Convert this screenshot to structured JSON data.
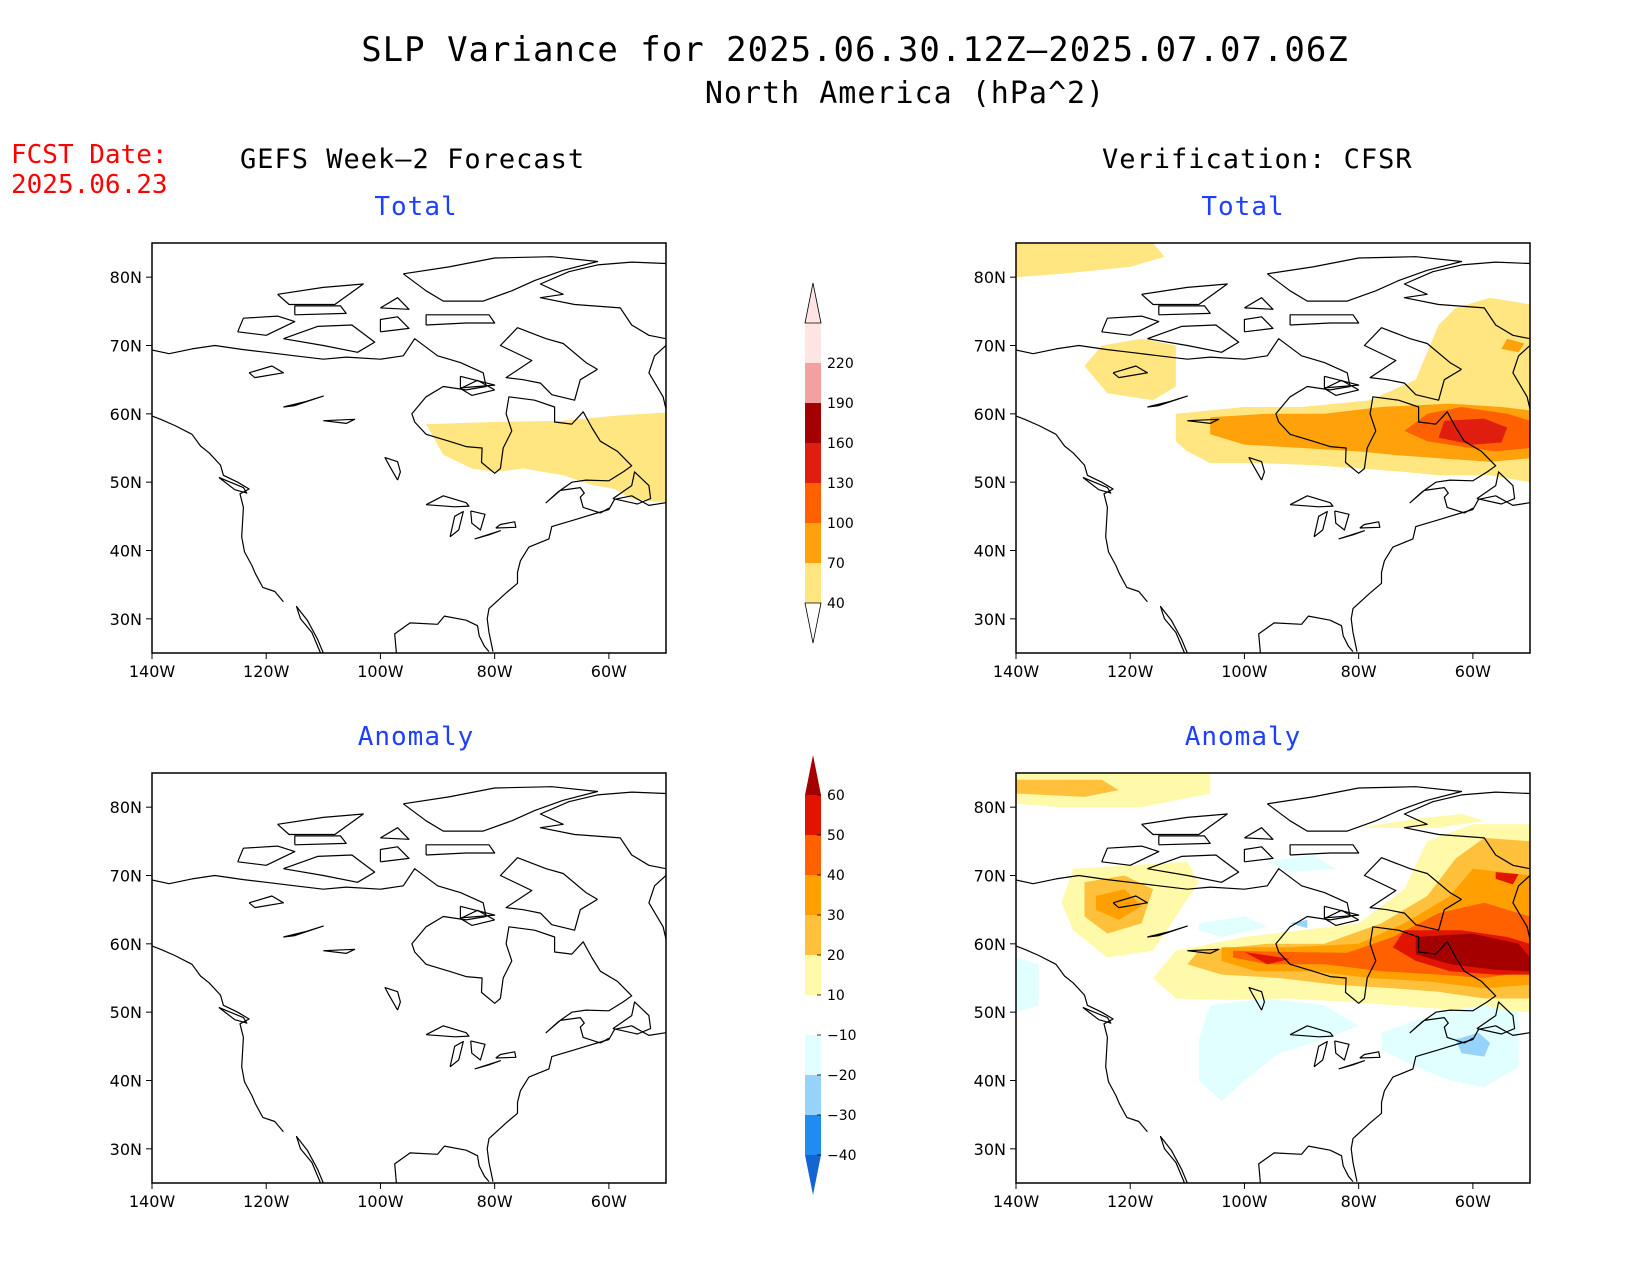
{
  "title": "SLP Variance for 2025.06.30.12Z–2025.07.07.06Z",
  "subtitle": "North America (hPa^2)",
  "fcst_date_label": "FCST Date:",
  "fcst_date_value": "2025.06.23",
  "left_column_title": "GEFS Week–2 Forecast",
  "right_column_title": "Verification: CFSR",
  "axis": {
    "lat_ticks": [
      {
        "value": 80,
        "label": "80N"
      },
      {
        "value": 70,
        "label": "70N"
      },
      {
        "value": 60,
        "label": "60N"
      },
      {
        "value": 50,
        "label": "50N"
      },
      {
        "value": 40,
        "label": "40N"
      },
      {
        "value": 30,
        "label": "30N"
      }
    ],
    "lon_ticks": [
      {
        "value": -140,
        "label": "140W"
      },
      {
        "value": -120,
        "label": "120W"
      },
      {
        "value": -100,
        "label": "100W"
      },
      {
        "value": -80,
        "label": "80W"
      },
      {
        "value": -60,
        "label": "60W"
      }
    ],
    "lon_range": [
      -140,
      -50
    ],
    "lat_range": [
      25,
      85
    ]
  },
  "colorbars": {
    "total": {
      "levels": [
        "40",
        "70",
        "100",
        "130",
        "160",
        "190",
        "220"
      ],
      "colors": [
        "#ffe680",
        "#ffa10a",
        "#ff6100",
        "#e01e0f",
        "#a50000",
        "#f2a0a0",
        "#ffe4e4"
      ]
    },
    "anomaly": {
      "levels": [
        "−40",
        "−30",
        "−20",
        "−10",
        "10",
        "20",
        "30",
        "40",
        "50",
        "60"
      ],
      "colors": [
        "#1464d2",
        "#1e8cf0",
        "#96d2fa",
        "#e1ffff",
        "#ffffff",
        "#fffaaa",
        "#ffc03c",
        "#ffa000",
        "#ff6000",
        "#e11400",
        "#a50000"
      ]
    }
  },
  "panels": [
    {
      "id": "fcst-total",
      "title": "Total"
    },
    {
      "id": "fcst-anom",
      "title": "Anomaly"
    },
    {
      "id": "ver-total",
      "title": "Total"
    },
    {
      "id": "ver-anom",
      "title": "Anomaly"
    }
  ]
}
